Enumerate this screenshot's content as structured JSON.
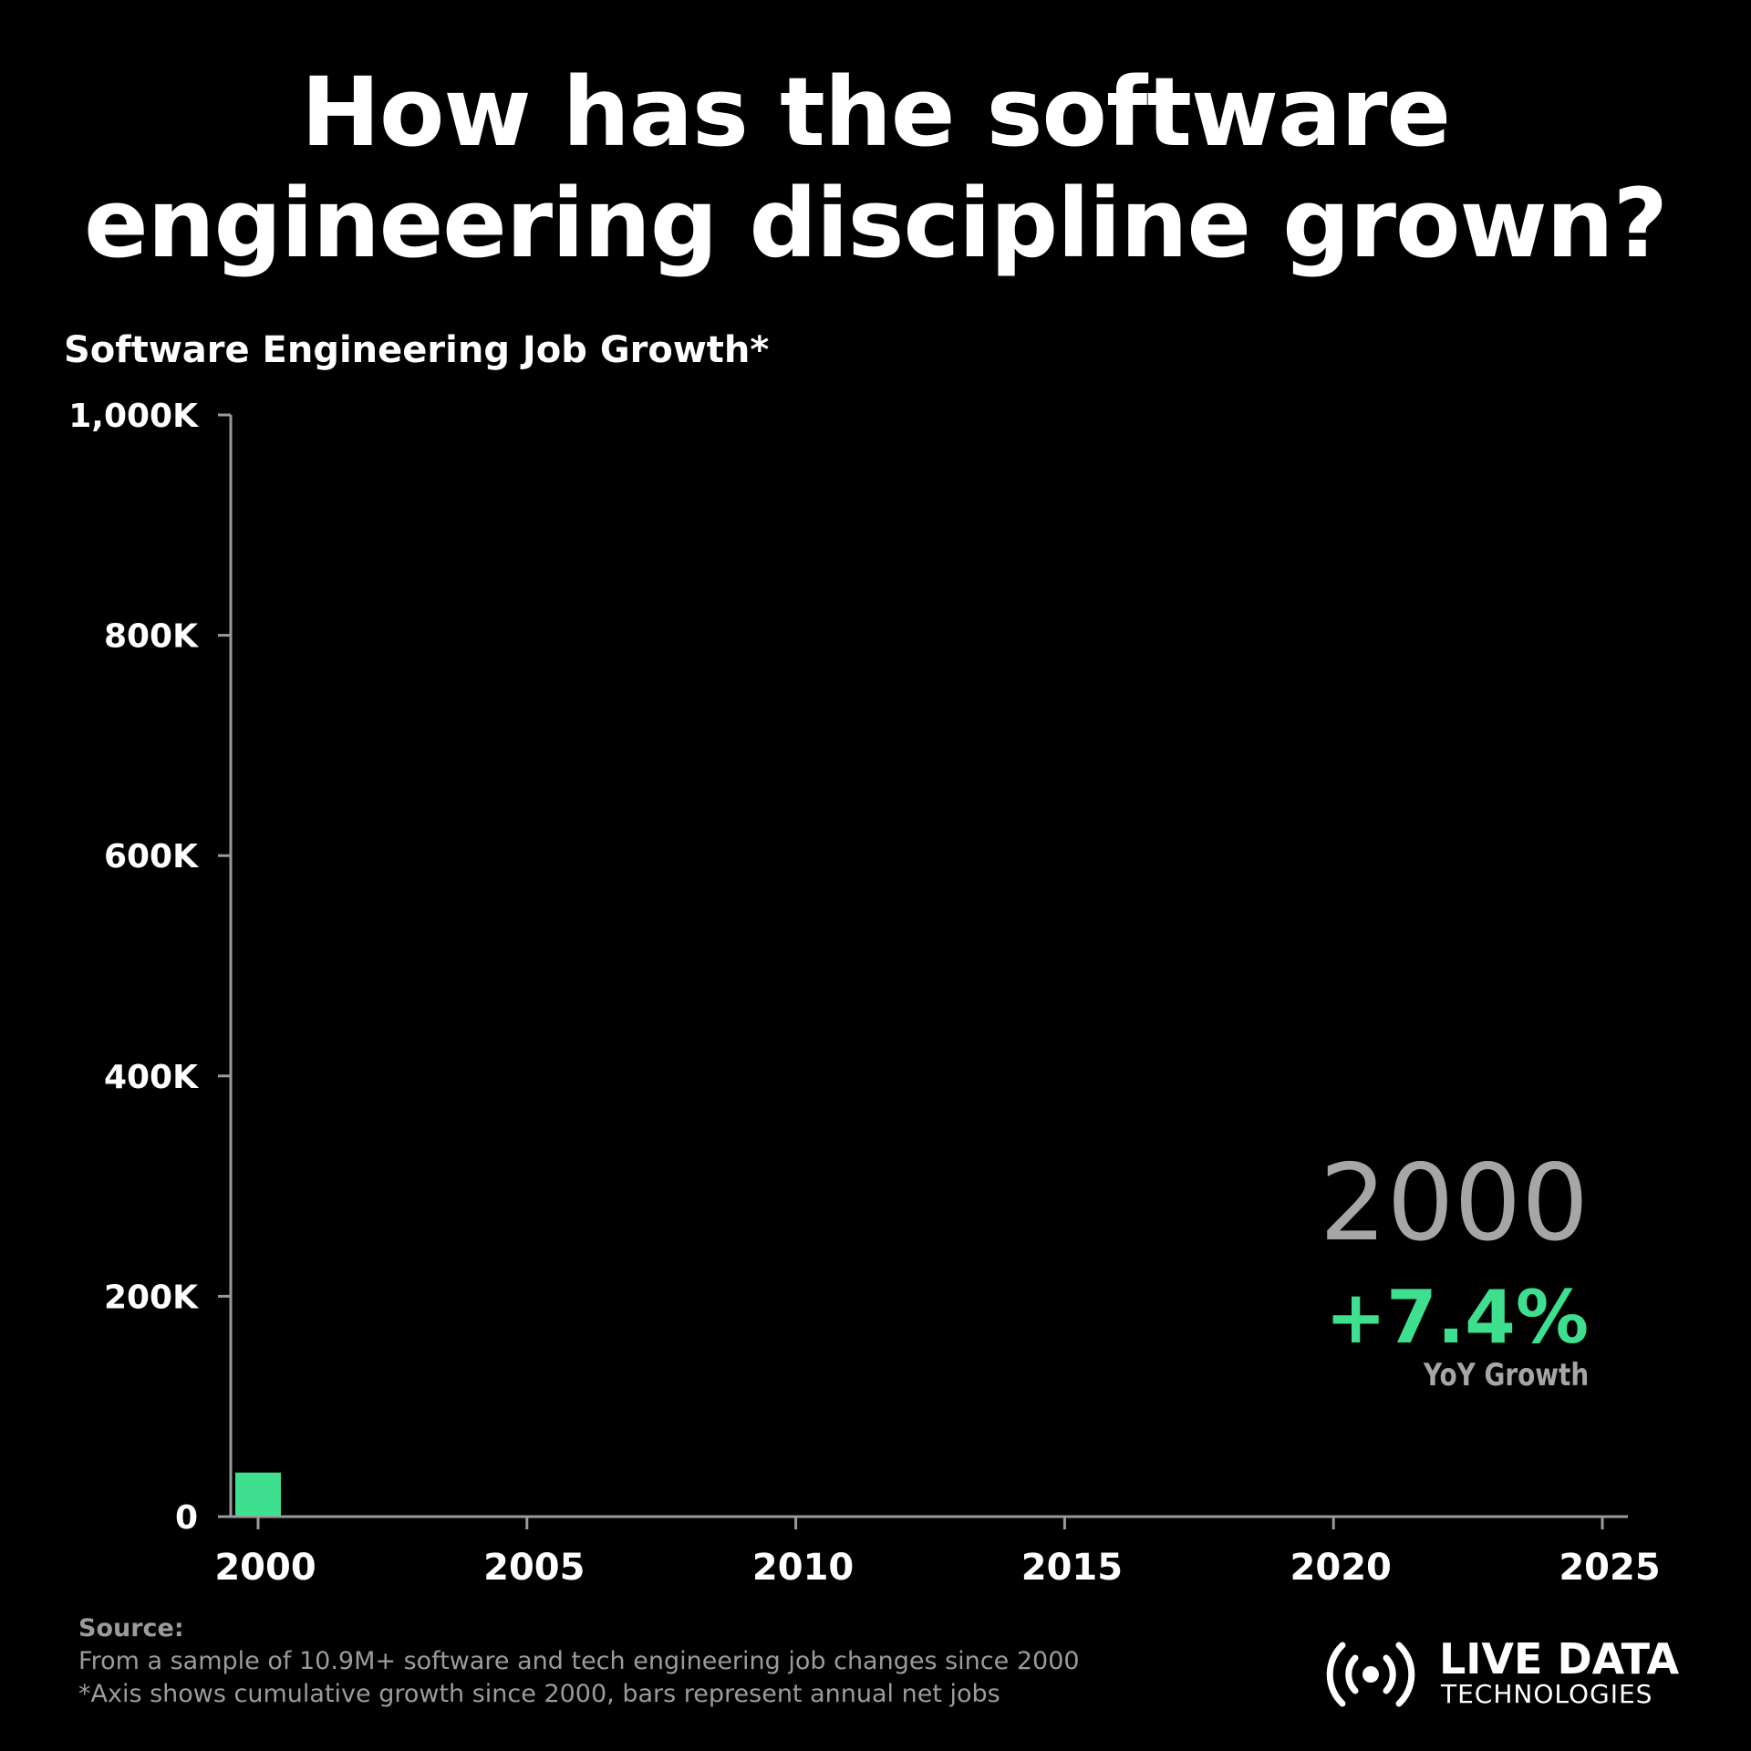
{
  "headline": {
    "line1": "How has the software",
    "line2": "engineering discipline grown?"
  },
  "colors": {
    "background": "#000000",
    "bar": "#3ee08f",
    "growth": "#3ee08f",
    "year": "#a6a6a6",
    "axis": "#9a9a9a",
    "source_text": "#9b9b9b"
  },
  "highlight": {
    "year": "2000",
    "growth": "+7.4%",
    "caption": "YoY Growth"
  },
  "chart_data": {
    "type": "bar",
    "title": "Software Engineering Job Growth*",
    "xlabel": "",
    "ylabel": "",
    "x_ticks": [
      "2000",
      "2005",
      "2010",
      "2015",
      "2020",
      "2025"
    ],
    "y_ticks": [
      "0",
      "200K",
      "400K",
      "600K",
      "800K",
      "1,000K"
    ],
    "xlim": [
      2000,
      2025
    ],
    "ylim": [
      0,
      1000000
    ],
    "grid": false,
    "categories": [
      "2000"
    ],
    "values": [
      40000
    ]
  },
  "source": {
    "label": "Source:",
    "line1": "From a sample of 10.9M+ software and tech engineering job changes since 2000",
    "line2": "*Axis shows cumulative growth since 2000, bars represent annual net jobs"
  },
  "logo": {
    "line1": "LIVE DATA",
    "line2": "TECHNOLOGIES",
    "icon": "broadcast-icon"
  }
}
